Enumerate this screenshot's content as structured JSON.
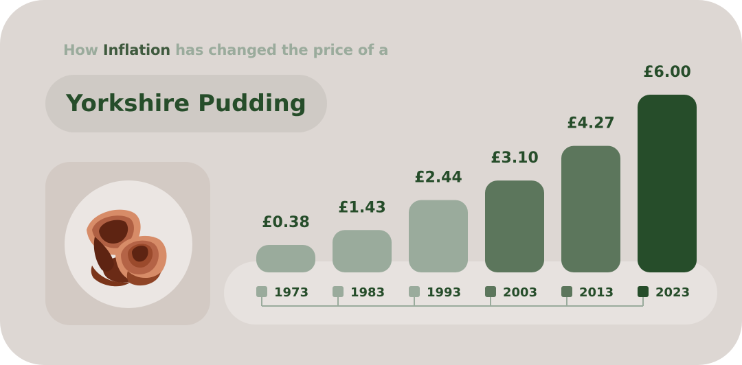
{
  "header": {
    "subtitle_parts": [
      "How ",
      "Inflation",
      " has changed the price of a"
    ],
    "title": "Yorkshire Pudding"
  },
  "illustration": {
    "icon": "yorkshire-pudding-icon"
  },
  "colors": {
    "background": "#ddd7d3",
    "light": "#9aab9c",
    "medium": "#5c765c",
    "dark": "#264d2a"
  },
  "chart_data": {
    "type": "bar",
    "title": "",
    "xlabel": "",
    "ylabel": "",
    "categories": [
      "1973",
      "1983",
      "1993",
      "2003",
      "2013",
      "2023"
    ],
    "values": [
      0.38,
      1.43,
      2.44,
      3.1,
      4.27,
      6.0
    ],
    "value_labels": [
      "£0.38",
      "£1.43",
      "£2.44",
      "£3.10",
      "£4.27",
      "£6.00"
    ],
    "bar_colors": [
      "#9aab9c",
      "#9aab9c",
      "#9aab9c",
      "#5c765c",
      "#5c765c",
      "#264d2a"
    ],
    "ylim": [
      0,
      6.5
    ],
    "grid": false
  }
}
